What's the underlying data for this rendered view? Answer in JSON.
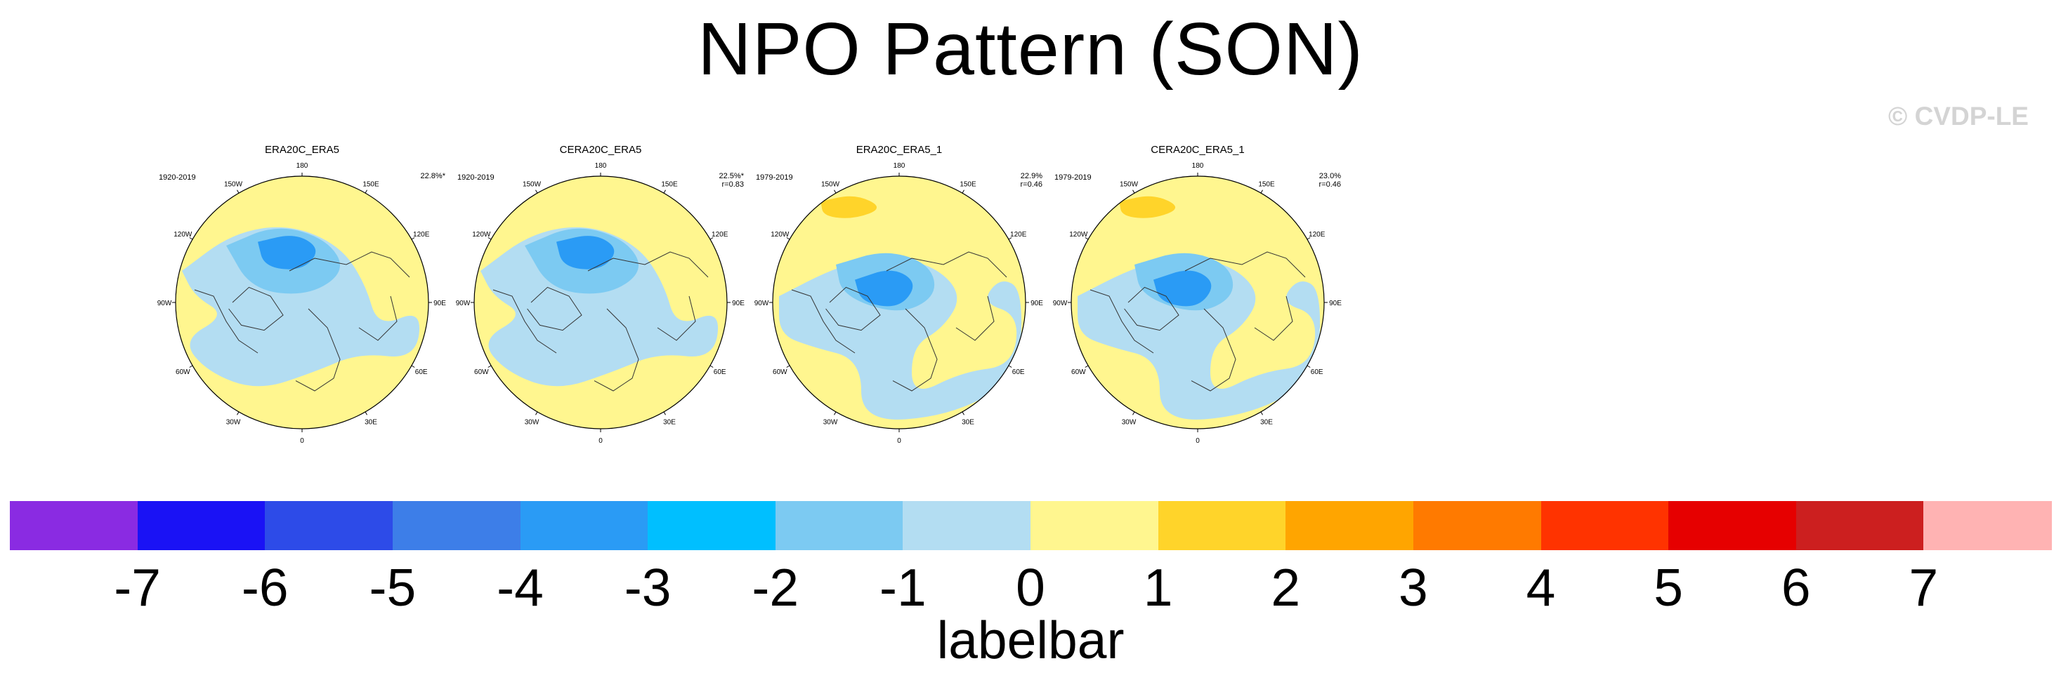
{
  "title": "NPO Pattern (SON)",
  "credit": "© CVDP-LE",
  "panels": [
    {
      "title": "ERA20C_ERA5",
      "period": "1920-2019",
      "pct": "22.8%*",
      "r": ""
    },
    {
      "title": "CERA20C_ERA5",
      "period": "1920-2019",
      "pct": "22.5%*",
      "r": "r=0.83"
    },
    {
      "title": "ERA20C_ERA5_1",
      "period": "1979-2019",
      "pct": "22.9%",
      "r": "r=0.46"
    },
    {
      "title": "CERA20C_ERA5_1",
      "period": "1979-2019",
      "pct": "23.0%",
      "r": "r=0.46"
    }
  ],
  "longitude_labels": [
    "180",
    "150E",
    "120E",
    "90E",
    "60E",
    "30E",
    "0",
    "30W",
    "60W",
    "90W",
    "120W",
    "150W"
  ],
  "labelbar": {
    "caption": "labelbar",
    "tick_labels": [
      "-7",
      "-6",
      "-5",
      "-4",
      "-3",
      "-2",
      "-1",
      "0",
      "1",
      "2",
      "3",
      "4",
      "5",
      "6",
      "7"
    ],
    "colors": [
      "#8a2be2",
      "#1a12f5",
      "#2d4be8",
      "#3d7ee8",
      "#2a9bf5",
      "#00bfff",
      "#7ccaf2",
      "#b3ddf2",
      "#fff68f",
      "#ffd42a",
      "#ffa500",
      "#ff7a00",
      "#ff3300",
      "#e60000",
      "#cc1f1f",
      "#ffb3b3"
    ]
  }
}
